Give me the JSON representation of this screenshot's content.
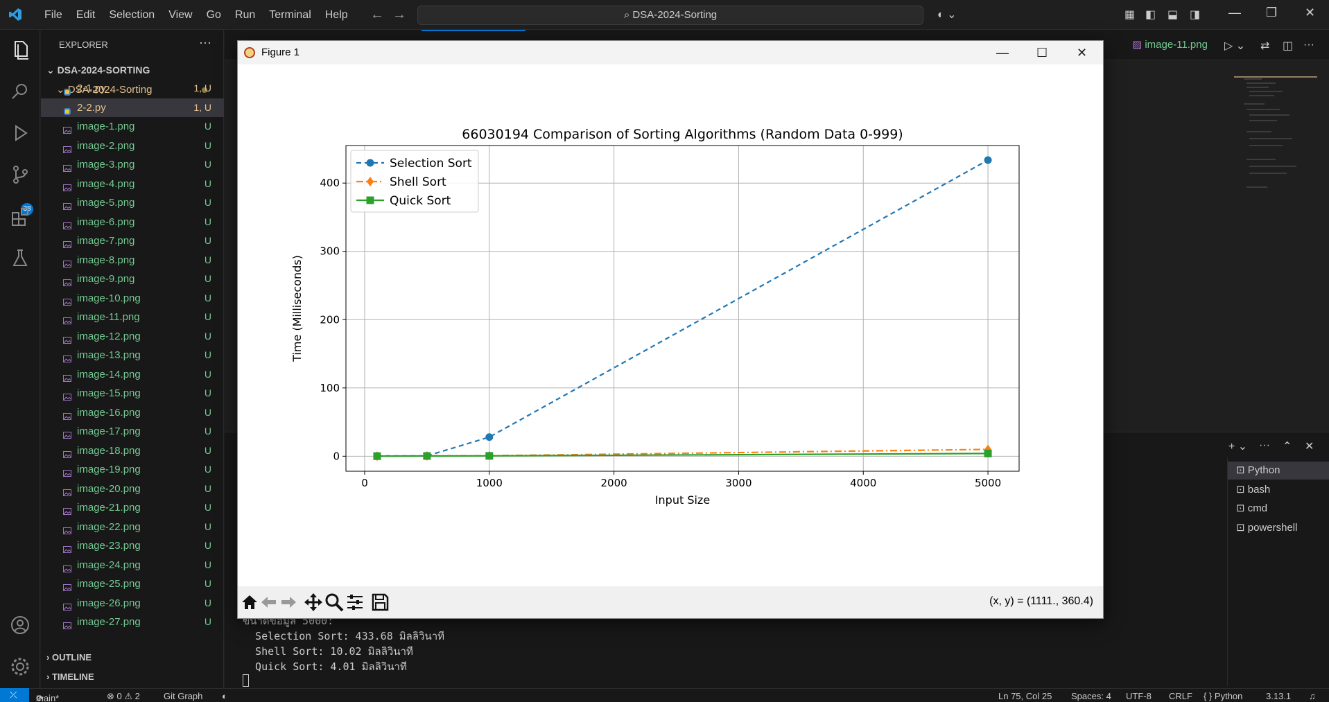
{
  "window": {
    "menu": [
      "File",
      "Edit",
      "Selection",
      "View",
      "Go",
      "Run",
      "Terminal",
      "Help"
    ],
    "search_text": "DSA-2024-Sorting"
  },
  "activity_bar": {
    "source_control_badge": "38"
  },
  "explorer": {
    "title": "EXPLORER",
    "workspace": "DSA-2024-SORTING",
    "folder": "DSA-2024-Sorting",
    "files": [
      {
        "name": "2-1.py",
        "tag": "1, U",
        "kind": "py"
      },
      {
        "name": "2-2.py",
        "tag": "1, U",
        "kind": "py",
        "selected": true
      },
      {
        "name": "image-1.png",
        "tag": "U",
        "kind": "png"
      },
      {
        "name": "image-2.png",
        "tag": "U",
        "kind": "png"
      },
      {
        "name": "image-3.png",
        "tag": "U",
        "kind": "png"
      },
      {
        "name": "image-4.png",
        "tag": "U",
        "kind": "png"
      },
      {
        "name": "image-5.png",
        "tag": "U",
        "kind": "png"
      },
      {
        "name": "image-6.png",
        "tag": "U",
        "kind": "png"
      },
      {
        "name": "image-7.png",
        "tag": "U",
        "kind": "png"
      },
      {
        "name": "image-8.png",
        "tag": "U",
        "kind": "png"
      },
      {
        "name": "image-9.png",
        "tag": "U",
        "kind": "png"
      },
      {
        "name": "image-10.png",
        "tag": "U",
        "kind": "png"
      },
      {
        "name": "image-11.png",
        "tag": "U",
        "kind": "png"
      },
      {
        "name": "image-12.png",
        "tag": "U",
        "kind": "png"
      },
      {
        "name": "image-13.png",
        "tag": "U",
        "kind": "png"
      },
      {
        "name": "image-14.png",
        "tag": "U",
        "kind": "png"
      },
      {
        "name": "image-15.png",
        "tag": "U",
        "kind": "png"
      },
      {
        "name": "image-16.png",
        "tag": "U",
        "kind": "png"
      },
      {
        "name": "image-17.png",
        "tag": "U",
        "kind": "png"
      },
      {
        "name": "image-18.png",
        "tag": "U",
        "kind": "png"
      },
      {
        "name": "image-19.png",
        "tag": "U",
        "kind": "png"
      },
      {
        "name": "image-20.png",
        "tag": "U",
        "kind": "png"
      },
      {
        "name": "image-21.png",
        "tag": "U",
        "kind": "png"
      },
      {
        "name": "image-22.png",
        "tag": "U",
        "kind": "png"
      },
      {
        "name": "image-23.png",
        "tag": "U",
        "kind": "png"
      },
      {
        "name": "image-24.png",
        "tag": "U",
        "kind": "png"
      },
      {
        "name": "image-25.png",
        "tag": "U",
        "kind": "png"
      },
      {
        "name": "image-26.png",
        "tag": "U",
        "kind": "png"
      },
      {
        "name": "image-27.png",
        "tag": "U",
        "kind": "png"
      }
    ],
    "outline": "OUTLINE",
    "timeline": "TIMELINE"
  },
  "editor": {
    "active_tab": "image-11.png"
  },
  "terminal": {
    "sessions": [
      "Python",
      "bash",
      "cmd",
      "powershell"
    ],
    "lines": [
      "ขนาดข้อมูล 5000:",
      "  Selection Sort: 433.68 มิลลิวินาที",
      "  Shell Sort: 10.02 มิลลิวินาที",
      "  Quick Sort: 4.01 มิลลิวินาที"
    ]
  },
  "figure": {
    "window_title": "Figure 1",
    "coords": "(x, y) = (1111., 360.4)"
  },
  "chart_data": {
    "type": "line",
    "title": "66030194 Comparison of Sorting Algorithms (Random Data 0-999)",
    "xlabel": "Input Size",
    "ylabel": "Time (Milliseconds)",
    "x": [
      100,
      500,
      1000,
      5000
    ],
    "xlim": [
      -150,
      5250
    ],
    "ylim": [
      -22,
      455
    ],
    "xticks": [
      0,
      1000,
      2000,
      3000,
      4000,
      5000
    ],
    "yticks": [
      0,
      100,
      200,
      300,
      400
    ],
    "grid": true,
    "legend": "top-left",
    "series": [
      {
        "name": "Selection Sort",
        "values": [
          0.4,
          0.5,
          28,
          433.68
        ],
        "color": "#1f77b4",
        "dash": "7,5",
        "marker": "circle"
      },
      {
        "name": "Shell Sort",
        "values": [
          0.1,
          0.4,
          0.7,
          10.02
        ],
        "color": "#ff7f0e",
        "dash": "10,4,2,4",
        "marker": "diamond"
      },
      {
        "name": "Quick Sort",
        "values": [
          0.1,
          0.3,
          0.5,
          4.01
        ],
        "color": "#2ca02c",
        "dash": "",
        "marker": "square"
      }
    ]
  },
  "status": {
    "branch": "main*",
    "problems": "⊗ 0 ⚠ 2",
    "git_graph": "Git Graph",
    "position": "Ln 75, Col 25",
    "spaces": "Spaces: 4",
    "encoding": "UTF-8",
    "eol": "CRLF",
    "language": "{ } Python",
    "version": "3.13.1"
  }
}
